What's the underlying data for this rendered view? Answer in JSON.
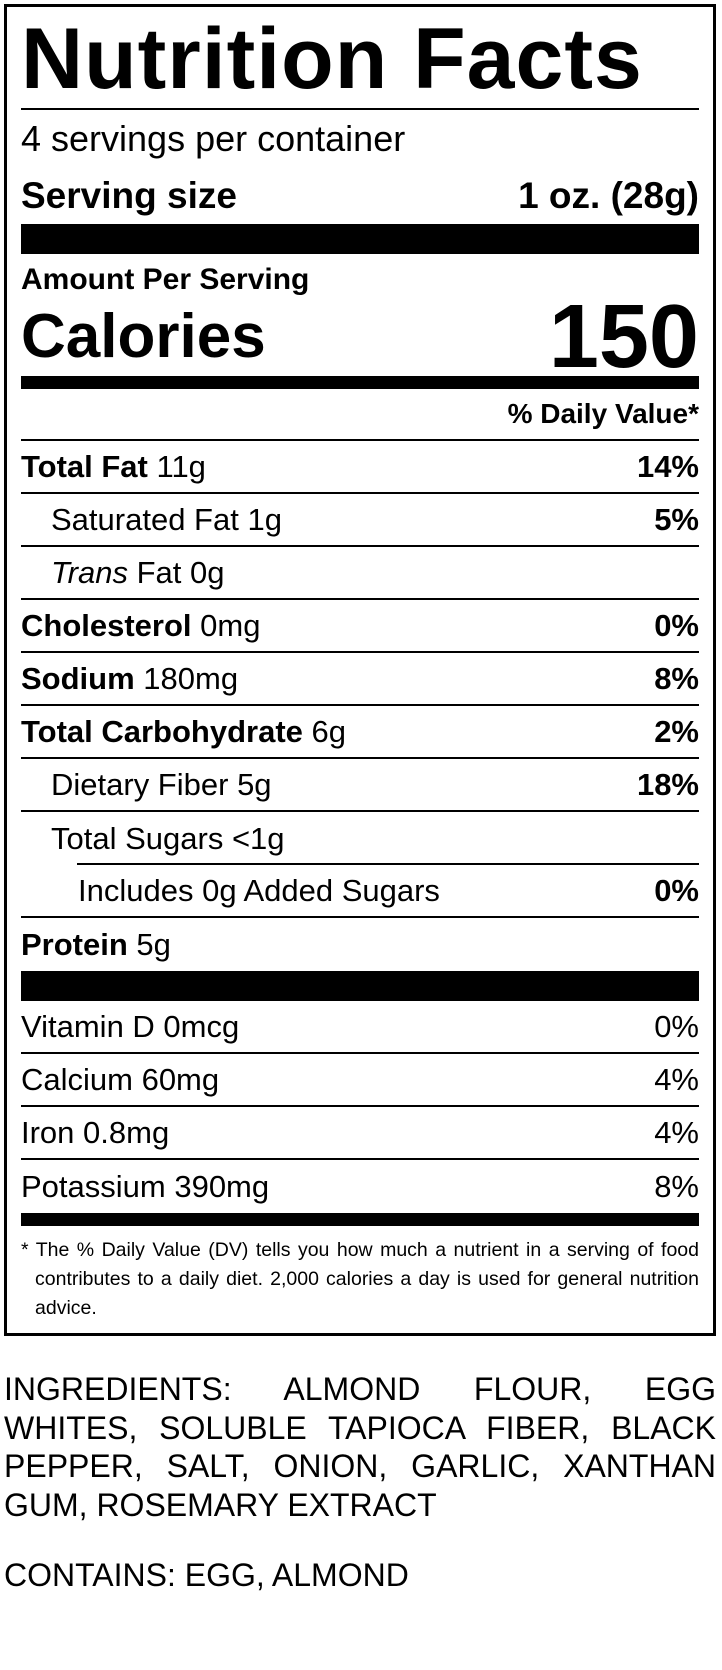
{
  "title": "Nutrition Facts",
  "servings": "4 servings per container",
  "serving_size": {
    "label": "Serving size",
    "value": "1 oz. (28g)"
  },
  "amount_per_serving": "Amount Per Serving",
  "calories": {
    "label": "Calories",
    "value": "150"
  },
  "daily_value_header": "% Daily Value*",
  "nutrients": [
    {
      "name": "Total Fat",
      "amount": "11g",
      "dv": "14%"
    },
    {
      "name": "Saturated Fat",
      "amount": "1g",
      "dv": "5%"
    },
    {
      "name": "Trans",
      "amount": "Fat 0g"
    },
    {
      "name": "Cholesterol",
      "amount": "0mg",
      "dv": "0%"
    },
    {
      "name": "Sodium",
      "amount": "180mg",
      "dv": "8%"
    },
    {
      "name": "Total Carbohydrate",
      "amount": "6g",
      "dv": "2%"
    },
    {
      "name": "Dietary Fiber",
      "amount": "5g",
      "dv": "18%"
    },
    {
      "name": "Total Sugars",
      "amount": "<1g"
    },
    {
      "name": "Includes 0g Added Sugars",
      "dv": "0%"
    },
    {
      "name": "Protein",
      "amount": "5g"
    }
  ],
  "vitamins": [
    {
      "name": "Vitamin D 0mcg",
      "dv": "0%"
    },
    {
      "name": "Calcium 60mg",
      "dv": "4%"
    },
    {
      "name": "Iron 0.8mg",
      "dv": "4%"
    },
    {
      "name": "Potassium 390mg",
      "dv": "8%"
    }
  ],
  "footnote": {
    "mark": "*",
    "text": "The % Daily Value (DV) tells you how much a nutrient in a serving of food contributes to a daily diet. 2,000 calories a day is used for general nutrition advice."
  },
  "ingredients": "INGREDIENTS: ALMOND FLOUR, EGG WHITES, SOLUBLE TAPIOCA FIBER, BLACK PEPPER, SALT, ONION, GARLIC, XANTHAN GUM, ROSEMARY EXTRACT",
  "contains": "CONTAINS: EGG, ALMOND"
}
